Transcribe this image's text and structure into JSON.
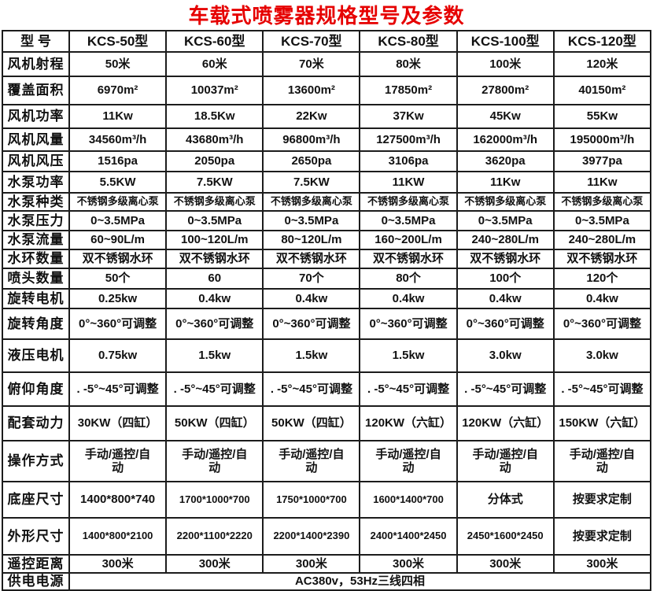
{
  "title": "车载式喷雾器规格型号及参数",
  "colors": {
    "title_red": "#e60000",
    "border": "#1c1c1c",
    "text": "#111111",
    "background": "#ffffff"
  },
  "table": {
    "header": [
      "型  号",
      "KCS-50型",
      "KCS-60型",
      "KCS-70型",
      "KCS-80型",
      "KCS-100型",
      "KCS-120型"
    ],
    "rows": [
      {
        "label": "风机射程",
        "values": [
          "50米",
          "60米",
          "70米",
          "80米",
          "100米",
          "120米"
        ]
      },
      {
        "label": "覆盖面积",
        "values": [
          "6970m²",
          "10037m²",
          "13600m²",
          "17850m²",
          "27800m²",
          "40150m²"
        ]
      },
      {
        "label": "风机功率",
        "values": [
          "11Kw",
          "18.5Kw",
          "22Kw",
          "37Kw",
          "45Kw",
          "55Kw"
        ]
      },
      {
        "label": "风机风量",
        "values": [
          "34560m³/h",
          "43680m³/h",
          "96800m³/h",
          "127500m³/h",
          "162000m³/h",
          "195000m³/h"
        ]
      },
      {
        "label": "风机风压",
        "values": [
          "1516pa",
          "2050pa",
          "2650pa",
          "3106pa",
          "3620pa",
          "3977pa"
        ]
      },
      {
        "label": "水泵功率",
        "values": [
          "5.5KW",
          "7.5KW",
          "7.5KW",
          "11KW",
          "11Kw",
          "11Kw"
        ]
      },
      {
        "label": "水泵种类",
        "values": [
          "不锈钢多级离心泵",
          "不锈钢多级离心泵",
          "不锈钢多级离心泵",
          "不锈钢多级离心泵",
          "不锈钢多级离心泵",
          "不锈钢多级离心泵"
        ]
      },
      {
        "label": "水泵压力",
        "values": [
          "0~3.5MPa",
          "0~3.5MPa",
          "0~3.5MPa",
          "0~3.5MPa",
          "0~3.5MPa",
          "0~3.5MPa"
        ]
      },
      {
        "label": "水泵流量",
        "values": [
          "60~90L/m",
          "100~120L/m",
          "80~120L/m",
          "160~200L/m",
          "240~280L/m",
          "240~280L/m"
        ]
      },
      {
        "label": "水环数量",
        "values": [
          "双不锈钢水环",
          "双不锈钢水环",
          "双不锈钢水环",
          "双不锈钢水环",
          "双不锈钢水环",
          "双不锈钢水环"
        ]
      },
      {
        "label": "喷头数量",
        "values": [
          "50个",
          "60",
          "70个",
          "80个",
          "100个",
          "120个"
        ]
      },
      {
        "label": "旋转电机",
        "values": [
          "0.25kw",
          "0.4kw",
          "0.4kw",
          "0.4kw",
          "0.4kw",
          "0.4kw"
        ]
      },
      {
        "label": "旋转角度",
        "values": [
          "0°~360°可调整",
          "0°~360°可调整",
          "0°~360°可调整",
          "0°~360°可调整",
          "0°~360°可调整",
          "0°~360°可调整"
        ]
      },
      {
        "label": "液压电机",
        "values": [
          "0.75kw",
          "1.5kw",
          "1.5kw",
          "1.5kw",
          "3.0kw",
          "3.0kw"
        ]
      },
      {
        "label": "俯仰角度",
        "values": [
          ". -5°~45°可调整",
          ". -5°~45°可调整",
          ". -5°~45°可调整",
          ". -5°~45°可调整",
          ". -5°~45°可调整",
          ". -5°~45°可调整"
        ]
      },
      {
        "label": "配套动力",
        "values": [
          "30KW（四缸）",
          "50KW（四缸）",
          "50KW（四缸）",
          "120KW（六缸）",
          "120KW（六缸）",
          "150KW（六缸）"
        ]
      },
      {
        "label": "操作方式",
        "values": [
          "手动/遥控/自\n动",
          "手动/遥控/自\n动",
          "手动/遥控/自\n动",
          "手动/遥控/自\n动",
          "手动/遥控/自\n动",
          "手动/遥控/自\n动"
        ]
      },
      {
        "label": "底座尺寸",
        "values": [
          "1400*800*740",
          "1700*1000*700",
          "1750*1000*700",
          "1600*1400*700",
          "分体式",
          "按要求定制"
        ]
      },
      {
        "label": "外形尺寸",
        "values": [
          "1400*800*2100",
          "2200*1100*2220",
          "2200*1400*2390",
          "2400*1400*2450",
          "2450*1600*2450",
          "按要求定制"
        ]
      },
      {
        "label": "遥控距离",
        "values": [
          "300米",
          "300米",
          "300米",
          "300米",
          "300米",
          "300米"
        ]
      }
    ],
    "footer": {
      "label": "供电电源",
      "value": "AC380v，53Hz三线四相"
    }
  }
}
